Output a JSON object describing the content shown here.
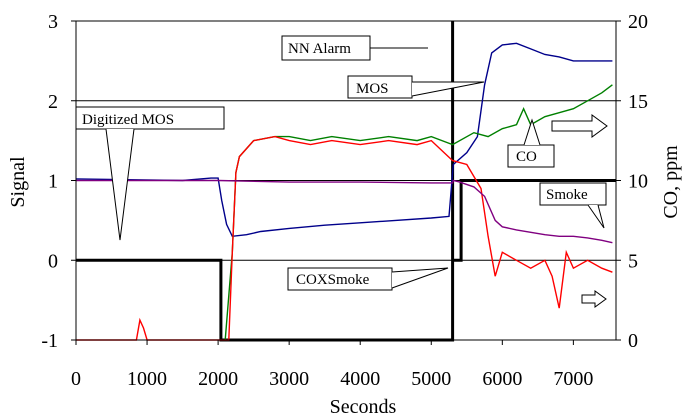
{
  "chart_data": {
    "type": "line",
    "title": "",
    "xlabel": "Seconds",
    "ylabel": "Signal",
    "y2label": "CO, ppm",
    "xlim": [
      0,
      7600
    ],
    "ylim": [
      -1,
      3
    ],
    "y2lim": [
      0,
      20
    ],
    "grid": "horizontal major gridlines",
    "x_ticks": [
      "0",
      "1000",
      "2000",
      "3000",
      "4000",
      "5000",
      "6000",
      "7000"
    ],
    "y_ticks": [
      "-1",
      "0",
      "1",
      "2",
      "3"
    ],
    "y2_ticks": [
      "0",
      "5",
      "10",
      "15",
      "20"
    ],
    "series": [
      {
        "name": "Digitized MOS",
        "axis": "left",
        "color": "#000000",
        "points": [
          [
            0,
            0
          ],
          [
            2040,
            0
          ],
          [
            2040,
            -1
          ],
          [
            5300,
            -1
          ],
          [
            5300,
            3
          ]
        ]
      },
      {
        "name": "NN Alarm",
        "axis": "left",
        "color": "#000000",
        "points": [
          [
            5300,
            0
          ],
          [
            5420,
            0
          ],
          [
            5420,
            1
          ],
          [
            7600,
            1
          ]
        ]
      },
      {
        "name": "MOS",
        "axis": "left",
        "color": "#00008b",
        "points": [
          [
            0,
            1.02
          ],
          [
            1500,
            1.0
          ],
          [
            1900,
            1.03
          ],
          [
            2000,
            1.03
          ],
          [
            2050,
            0.75
          ],
          [
            2120,
            0.45
          ],
          [
            2200,
            0.3
          ],
          [
            2400,
            0.32
          ],
          [
            2600,
            0.36
          ],
          [
            3000,
            0.4
          ],
          [
            3500,
            0.44
          ],
          [
            4000,
            0.47
          ],
          [
            4500,
            0.5
          ],
          [
            5000,
            0.53
          ],
          [
            5250,
            0.55
          ],
          [
            5310,
            1.2
          ],
          [
            5500,
            1.35
          ],
          [
            5650,
            1.55
          ],
          [
            5750,
            2.2
          ],
          [
            5850,
            2.6
          ],
          [
            6000,
            2.7
          ],
          [
            6200,
            2.72
          ],
          [
            6400,
            2.65
          ],
          [
            6600,
            2.58
          ],
          [
            6800,
            2.55
          ],
          [
            7000,
            2.5
          ],
          [
            7200,
            2.5
          ],
          [
            7400,
            2.5
          ],
          [
            7550,
            2.5
          ]
        ]
      },
      {
        "name": "CO",
        "axis": "right",
        "color": "#008000",
        "points": [
          [
            2100,
            -1.0
          ],
          [
            2200,
            0.1
          ],
          [
            2250,
            1.1
          ],
          [
            2300,
            1.3
          ],
          [
            2500,
            1.5
          ],
          [
            2800,
            1.55
          ],
          [
            3000,
            1.55
          ],
          [
            3300,
            1.5
          ],
          [
            3600,
            1.55
          ],
          [
            4000,
            1.5
          ],
          [
            4400,
            1.55
          ],
          [
            4800,
            1.5
          ],
          [
            5000,
            1.55
          ],
          [
            5300,
            1.45
          ],
          [
            5600,
            1.6
          ],
          [
            5800,
            1.55
          ],
          [
            6000,
            1.65
          ],
          [
            6200,
            1.7
          ],
          [
            6300,
            1.9
          ],
          [
            6400,
            1.7
          ],
          [
            6600,
            1.8
          ],
          [
            6800,
            1.85
          ],
          [
            7000,
            1.9
          ],
          [
            7200,
            2.0
          ],
          [
            7400,
            2.1
          ],
          [
            7550,
            2.2
          ]
        ]
      },
      {
        "name": "COXSmoke",
        "axis": "left",
        "color": "#ff0000",
        "points": [
          [
            0,
            -1.0
          ],
          [
            850,
            -1.0
          ],
          [
            900,
            -0.75
          ],
          [
            950,
            -0.85
          ],
          [
            1000,
            -1.0
          ],
          [
            2150,
            -1.0
          ],
          [
            2200,
            0.1
          ],
          [
            2250,
            1.1
          ],
          [
            2300,
            1.3
          ],
          [
            2500,
            1.5
          ],
          [
            2800,
            1.55
          ],
          [
            3000,
            1.5
          ],
          [
            3300,
            1.45
          ],
          [
            3600,
            1.5
          ],
          [
            4000,
            1.45
          ],
          [
            4400,
            1.5
          ],
          [
            4800,
            1.45
          ],
          [
            5000,
            1.5
          ],
          [
            5300,
            1.25
          ],
          [
            5500,
            1.2
          ],
          [
            5700,
            0.9
          ],
          [
            5800,
            0.3
          ],
          [
            5900,
            -0.2
          ],
          [
            6000,
            0.1
          ],
          [
            6200,
            0.0
          ],
          [
            6400,
            -0.1
          ],
          [
            6600,
            0.0
          ],
          [
            6700,
            -0.2
          ],
          [
            6800,
            -0.6
          ],
          [
            6900,
            0.1
          ],
          [
            7000,
            -0.1
          ],
          [
            7200,
            0.0
          ],
          [
            7400,
            -0.1
          ],
          [
            7550,
            -0.15
          ]
        ]
      },
      {
        "name": "Smoke",
        "axis": "left",
        "color": "#800080",
        "points": [
          [
            0,
            1.0
          ],
          [
            2000,
            1.0
          ],
          [
            3000,
            0.98
          ],
          [
            4000,
            0.98
          ],
          [
            5000,
            0.97
          ],
          [
            5300,
            0.97
          ],
          [
            5310,
            1.0
          ],
          [
            5400,
            0.98
          ],
          [
            5600,
            0.92
          ],
          [
            5750,
            0.8
          ],
          [
            5900,
            0.5
          ],
          [
            6000,
            0.42
          ],
          [
            6200,
            0.38
          ],
          [
            6400,
            0.35
          ],
          [
            6600,
            0.32
          ],
          [
            6800,
            0.3
          ],
          [
            7000,
            0.3
          ],
          [
            7200,
            0.28
          ],
          [
            7400,
            0.25
          ],
          [
            7550,
            0.22
          ]
        ]
      }
    ],
    "annotations": [
      {
        "text": "NN Alarm"
      },
      {
        "text": "MOS"
      },
      {
        "text": "Digitized MOS"
      },
      {
        "text": "CO"
      },
      {
        "text": "Smoke"
      },
      {
        "text": "COXSmoke"
      }
    ]
  }
}
